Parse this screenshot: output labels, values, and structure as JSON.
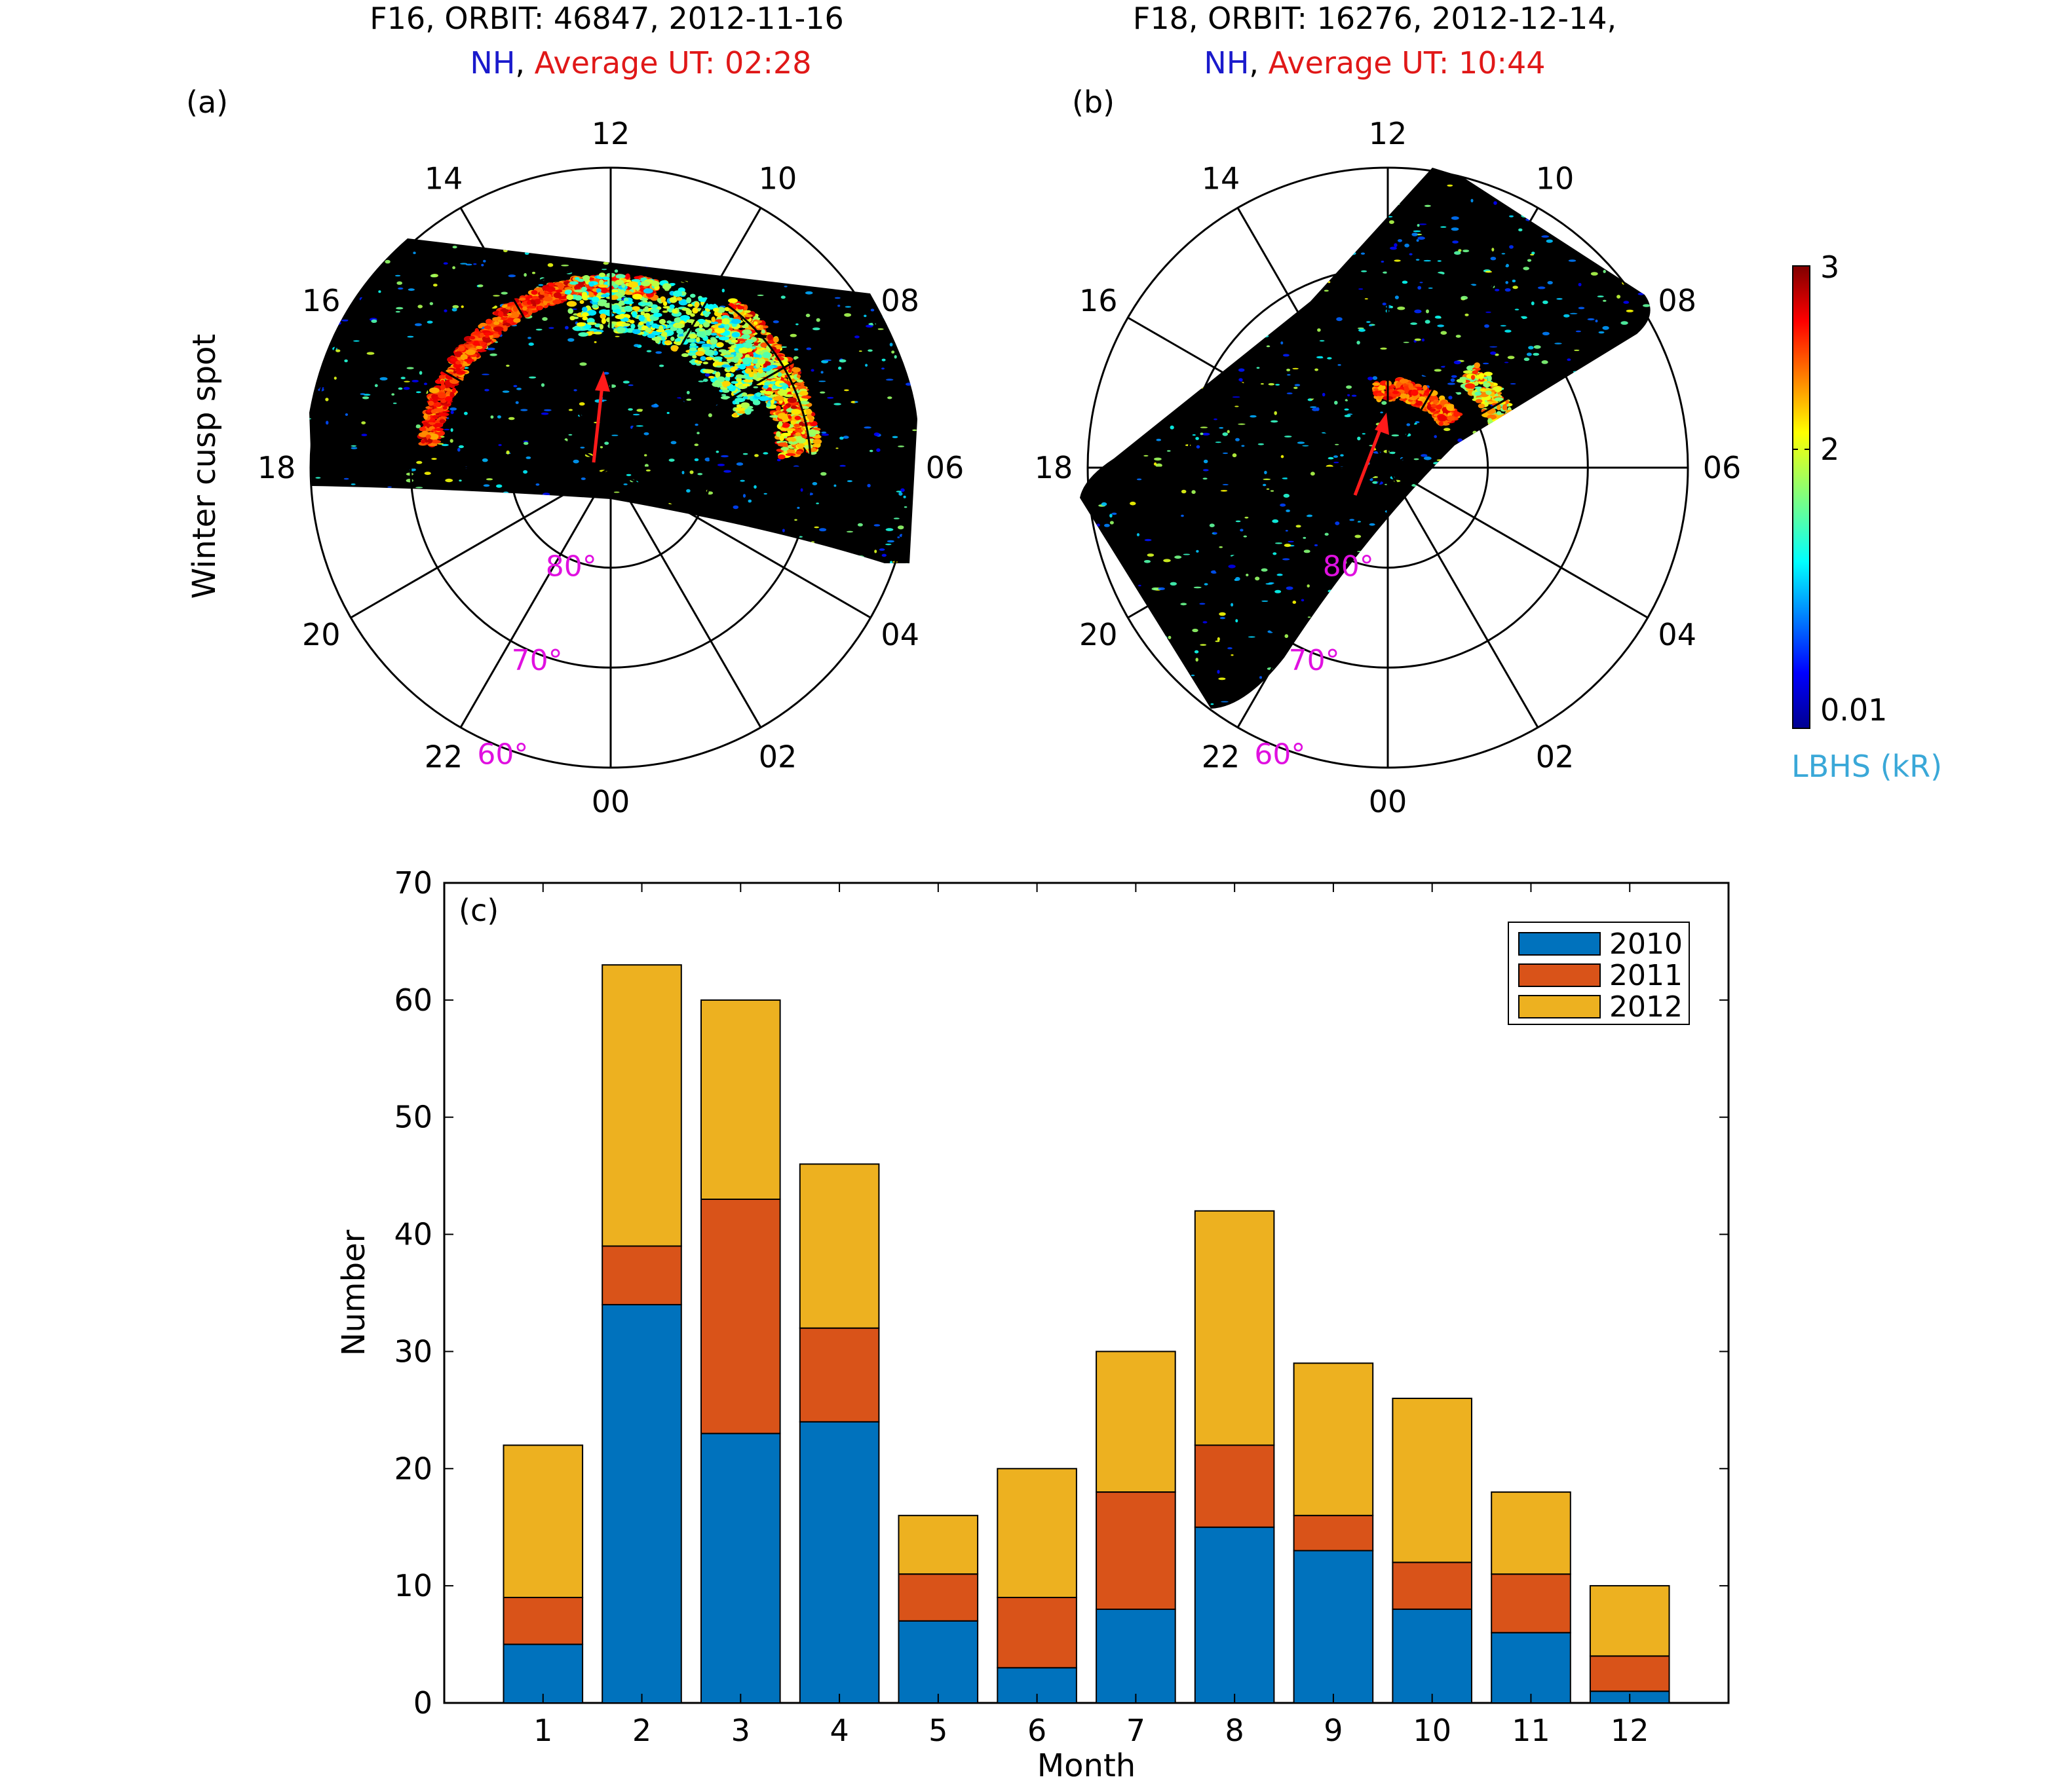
{
  "colors": {
    "nh": "#1a1acc",
    "ut": "#e01818",
    "lat": "#e010e0",
    "cbar_label": "#3aa8d8",
    "y2010": "#0072bd",
    "y2011": "#d95319",
    "y2012": "#edb120"
  },
  "panels": [
    {
      "tag": "(a)",
      "title_line1": "F16, ORBIT: 46847, 2012-11-16",
      "title_nh": "NH",
      "title_sep": ",",
      "title_ut": "Average UT: 02:28",
      "ylabel": "Winter cusp spot"
    },
    {
      "tag": "(b)",
      "title_line1": "F18, ORBIT: 16276, 2012-12-14,",
      "title_nh": "NH",
      "title_sep": ",",
      "title_ut": "Average UT: 10:44"
    }
  ],
  "polar": {
    "hour_labels": [
      "12",
      "10",
      "08",
      "06",
      "04",
      "02",
      "00",
      "22",
      "20",
      "18",
      "16",
      "14"
    ],
    "lat_labels": [
      "80°",
      "70°",
      "60°"
    ]
  },
  "colorbar": {
    "ticks": [
      "3",
      "2",
      "0.01"
    ],
    "label": "LBHS (kR)"
  },
  "chart_data": {
    "type": "bar",
    "stacked": true,
    "tag": "(c)",
    "categories": [
      "1",
      "2",
      "3",
      "4",
      "5",
      "6",
      "7",
      "8",
      "9",
      "10",
      "11",
      "12"
    ],
    "series": [
      {
        "name": "2010",
        "values": [
          5,
          34,
          23,
          24,
          7,
          3,
          8,
          15,
          13,
          8,
          6,
          1
        ]
      },
      {
        "name": "2011",
        "values": [
          4,
          5,
          20,
          8,
          4,
          6,
          10,
          7,
          3,
          4,
          5,
          3
        ]
      },
      {
        "name": "2012",
        "values": [
          13,
          24,
          17,
          14,
          5,
          11,
          12,
          20,
          13,
          14,
          7,
          6
        ]
      }
    ],
    "xlabel": "Month",
    "ylabel": "Number",
    "ylim": [
      0,
      70
    ],
    "yticks": [
      "0",
      "10",
      "20",
      "30",
      "40",
      "50",
      "60",
      "70"
    ],
    "legend_position": "top-right",
    "grid": false
  }
}
